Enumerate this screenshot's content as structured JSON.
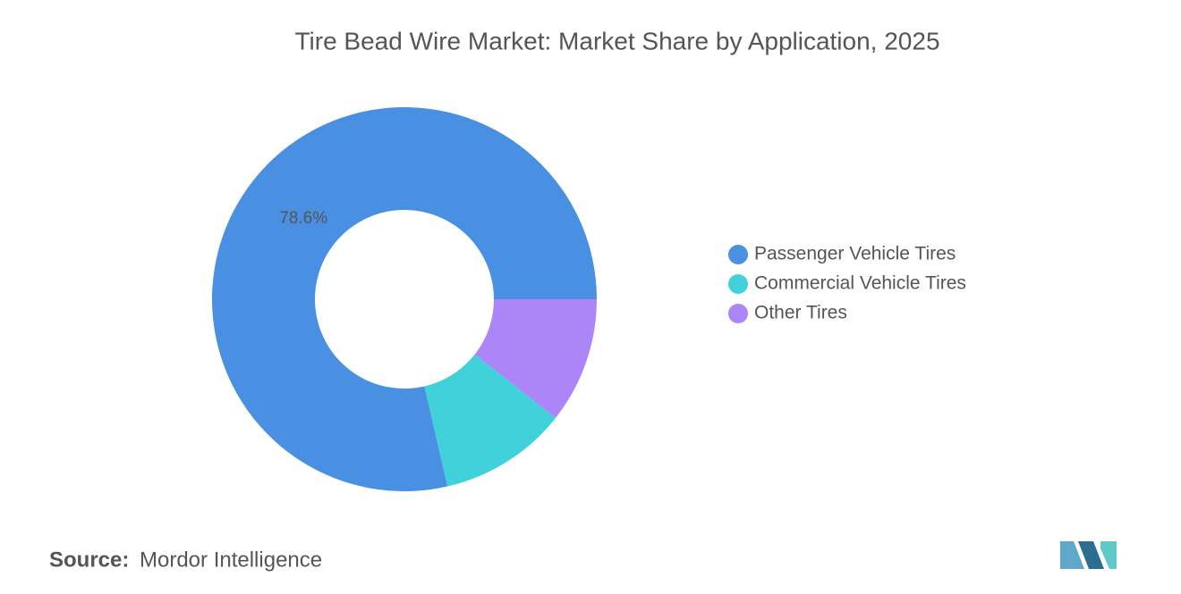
{
  "chart_data": {
    "type": "donut",
    "title": "Tire Bead Wire Market: Market Share by Application, 2025",
    "categories": [
      "Passenger Vehicle Tires",
      "Commercial Vehicle Tires",
      "Other Tires"
    ],
    "values": [
      78.6,
      10.8,
      10.6
    ],
    "value_labels": [
      "78.6%",
      null,
      null
    ],
    "colors": [
      "#4a90e2",
      "#40d1da",
      "#ac85f8"
    ],
    "legend": "right"
  },
  "source": {
    "label": "Source:",
    "text": "Mordor Intelligence"
  }
}
